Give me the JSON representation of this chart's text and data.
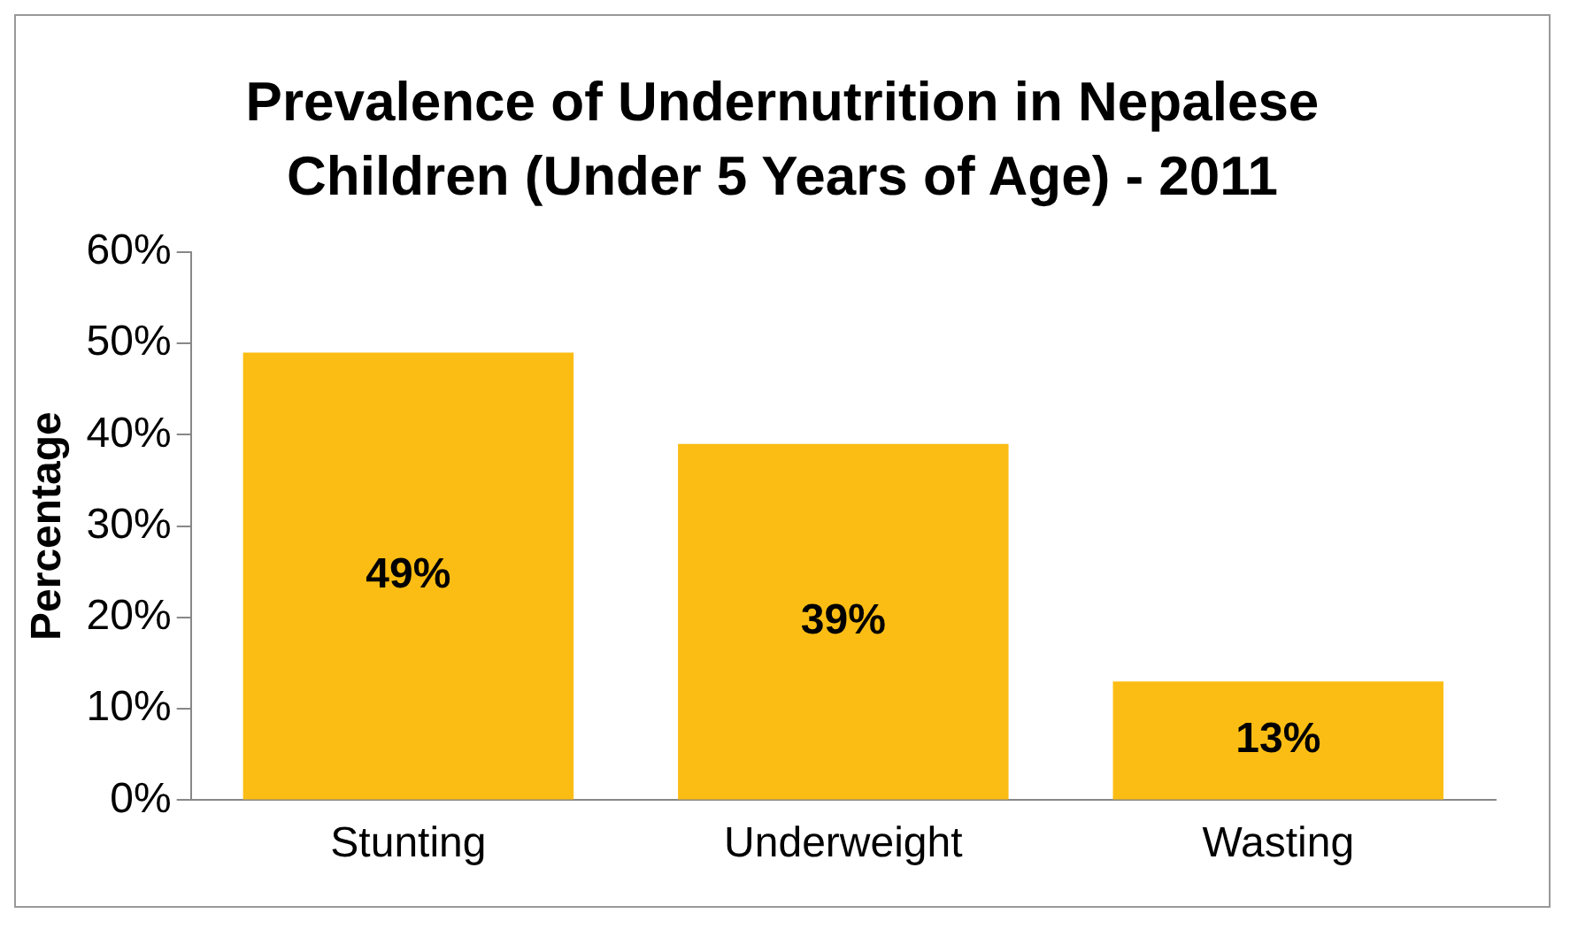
{
  "chart_data": {
    "type": "bar",
    "title": "Prevalence of Undernutrition in Nepalese Children (Under 5 Years of Age) - 2011",
    "ylabel": "Percentage",
    "categories": [
      "Stunting",
      "Underweight",
      "Wasting"
    ],
    "values": [
      49,
      39,
      13
    ],
    "value_labels": [
      "49%",
      "39%",
      "13%"
    ],
    "color": "#fbbd14",
    "ylim": [
      0,
      60
    ],
    "yticks": [
      {
        "value": 0,
        "label": "0%"
      },
      {
        "value": 10,
        "label": "10%"
      },
      {
        "value": 20,
        "label": "20%"
      },
      {
        "value": 30,
        "label": "30%"
      },
      {
        "value": 40,
        "label": "40%"
      },
      {
        "value": 50,
        "label": "50%"
      },
      {
        "value": 60,
        "label": "60%"
      }
    ],
    "grid": false,
    "legend": false
  }
}
